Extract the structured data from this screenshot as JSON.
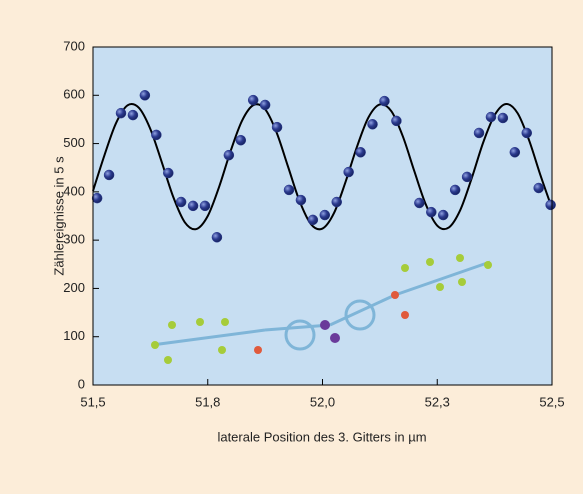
{
  "chart_data": {
    "type": "scatter",
    "x_label": "laterale Position des 3. Gitters in µm",
    "y_label": "Zählereignisse in 5 s",
    "x": [
      51.509,
      51.535,
      51.561,
      51.587,
      51.613,
      51.638,
      51.664,
      51.692,
      51.718,
      51.744,
      51.77,
      51.796,
      51.822,
      51.849,
      51.875,
      51.901,
      51.927,
      51.953,
      51.979,
      52.005,
      52.031,
      52.057,
      52.083,
      52.109,
      52.135,
      52.161,
      52.211,
      52.237,
      52.263,
      52.289,
      52.315,
      52.341,
      52.367,
      52.393,
      52.419,
      52.445,
      52.471,
      52.497
    ],
    "values": [
      387,
      435,
      563,
      559,
      600,
      518,
      439,
      379,
      371,
      371,
      306,
      476,
      507,
      590,
      580,
      534,
      404,
      383,
      342,
      352,
      379,
      441,
      482,
      540,
      588,
      547,
      377,
      358,
      352,
      404,
      431,
      522,
      555,
      553,
      482,
      522,
      408,
      373
    ],
    "color": "#2b3a8f",
    "fit_x": [
      51.5,
      51.525,
      51.55,
      51.575,
      51.6,
      51.625,
      51.65,
      51.675,
      51.7,
      51.725,
      51.75,
      51.775,
      51.8,
      51.825,
      51.85,
      51.875,
      51.9,
      51.925,
      51.95,
      51.975,
      52.0,
      52.025,
      52.05,
      52.075,
      52.1,
      52.125,
      52.15,
      52.175,
      52.2,
      52.225,
      52.25,
      52.275,
      52.3,
      52.325,
      52.35,
      52.375,
      52.4,
      52.425,
      52.45,
      52.475,
      52.5
    ],
    "fit_values": [
      402,
      476,
      542,
      579,
      574,
      530,
      461,
      389,
      337,
      323,
      350,
      411,
      485,
      548,
      580,
      571,
      523,
      452,
      381,
      333,
      324,
      356,
      420,
      493,
      554,
      581,
      567,
      515,
      443,
      374,
      330,
      326,
      362,
      428,
      502,
      559,
      582,
      563,
      507,
      434,
      366
    ],
    "line_color": "#000000",
    "xlim": [
      51.5,
      52.5
    ],
    "xticks": [
      {
        "value": 51.5,
        "label": "51,5"
      },
      {
        "value": 51.75,
        "label": "51,8"
      },
      {
        "value": 52.0,
        "label": "52,0"
      },
      {
        "value": 52.25,
        "label": "52,3"
      },
      {
        "value": 52.5,
        "label": "52,5"
      }
    ],
    "ylim": [
      0,
      700
    ],
    "yticks": [
      0,
      100,
      200,
      300,
      400,
      500,
      600,
      700
    ]
  }
}
